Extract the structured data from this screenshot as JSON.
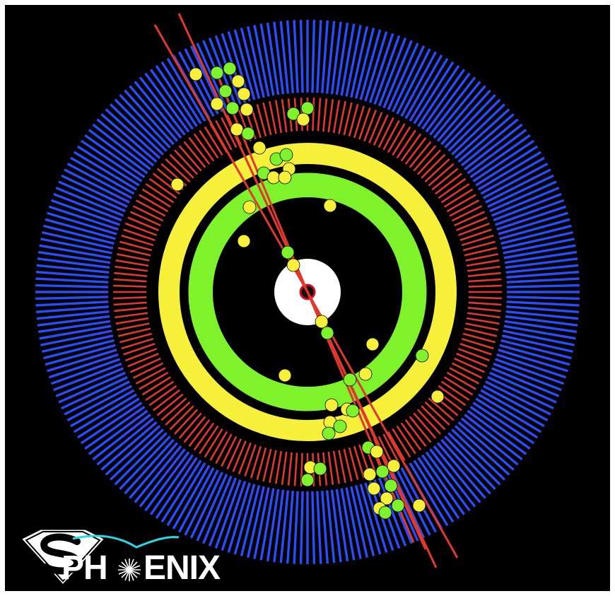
{
  "logo": {
    "text_left": "PH",
    "text_right": "ENIX",
    "emblem_letter": "S"
  },
  "colors": {
    "background": "#000000",
    "outer_calorimeter": "#2a4cff",
    "inner_calorimeter": "#e0382e",
    "em_ring": "#f7f03b",
    "tracker_ring": "#7ef22a",
    "beam_pipe": "#ffffff",
    "tracks": "#e0382e",
    "hits_yellow": "#f7f03b",
    "hits_green": "#7ef22a",
    "logo_arc": "#29d8e6"
  }
}
